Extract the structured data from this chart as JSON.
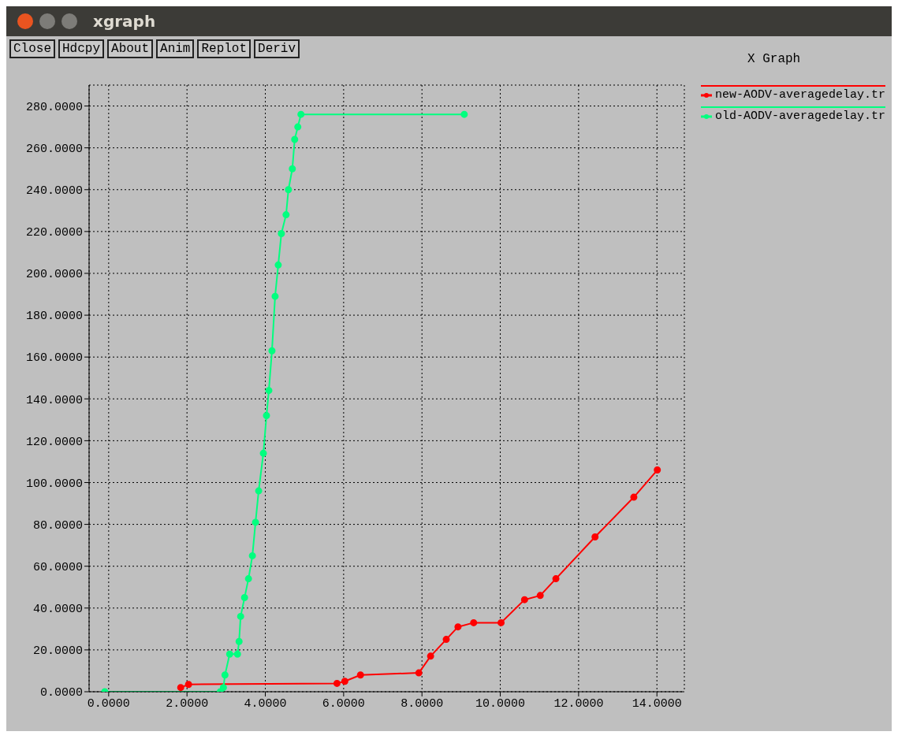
{
  "chart_data": {
    "type": "line",
    "title": "X Graph",
    "annotations": [
      "xgraph",
      "Close",
      "Hdcpy",
      "About",
      "Anim",
      "Replot",
      "Deriv"
    ],
    "xlim": [
      -0.5,
      14.7
    ],
    "xticks": [
      {
        "value": 0,
        "label": "0.0000"
      },
      {
        "value": 2,
        "label": "2.0000"
      },
      {
        "value": 4,
        "label": "4.0000"
      },
      {
        "value": 6,
        "label": "6.0000"
      },
      {
        "value": 8,
        "label": "8.0000"
      },
      {
        "value": 10,
        "label": "10.0000"
      },
      {
        "value": 12,
        "label": "12.0000"
      },
      {
        "value": 14,
        "label": "14.0000"
      }
    ],
    "ylim": [
      0,
      290
    ],
    "yticks": [
      {
        "value": 0,
        "label": "0.0000"
      },
      {
        "value": 20,
        "label": "20.0000"
      },
      {
        "value": 40,
        "label": "40.0000"
      },
      {
        "value": 60,
        "label": "60.0000"
      },
      {
        "value": 80,
        "label": "80.0000"
      },
      {
        "value": 100,
        "label": "100.0000"
      },
      {
        "value": 120,
        "label": "120.0000"
      },
      {
        "value": 140,
        "label": "140.0000"
      },
      {
        "value": 160,
        "label": "160.0000"
      },
      {
        "value": 180,
        "label": "180.0000"
      },
      {
        "value": 200,
        "label": "200.0000"
      },
      {
        "value": 220,
        "label": "220.0000"
      },
      {
        "value": 240,
        "label": "240.0000"
      },
      {
        "value": 260,
        "label": "260.0000"
      },
      {
        "value": 280,
        "label": "280.0000"
      }
    ],
    "grid": true,
    "legend": "top right",
    "marker": "circle",
    "line_style": "solid",
    "series": [
      {
        "name": "new-AODV-averagedelay.tr",
        "color": "#ff0000",
        "x": [
          1.84,
          2.04,
          5.83,
          6.03,
          6.43,
          7.92,
          8.22,
          8.62,
          8.92,
          9.32,
          10.02,
          10.62,
          11.02,
          11.42,
          12.42,
          13.41,
          14.01
        ],
        "values": [
          2,
          3.5,
          4,
          5,
          8,
          9,
          17,
          25,
          31,
          33,
          33,
          44,
          46,
          54,
          74,
          93,
          106
        ]
      },
      {
        "name": "old-AODV-averagedelay.tr",
        "color": "#00ff7f",
        "x": [
          -0.1,
          2.85,
          2.93,
          2.97,
          3.09,
          3.29,
          3.33,
          3.37,
          3.47,
          3.57,
          3.67,
          3.75,
          3.83,
          3.95,
          4.03,
          4.09,
          4.17,
          4.25,
          4.33,
          4.41,
          4.53,
          4.59,
          4.69,
          4.75,
          4.83,
          4.91,
          9.08
        ],
        "values": [
          0,
          0,
          2,
          8,
          18,
          18,
          24,
          36,
          45,
          54,
          65,
          81,
          96,
          114,
          132,
          144,
          163,
          189,
          204,
          219,
          228,
          240,
          250,
          264,
          270,
          276,
          276
        ]
      }
    ]
  }
}
